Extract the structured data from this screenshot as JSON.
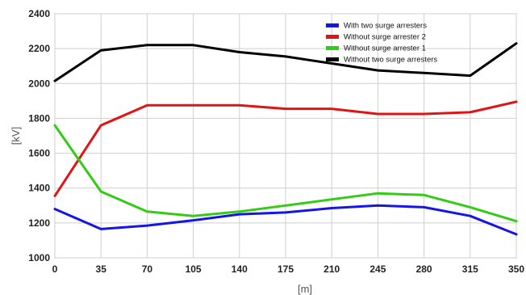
{
  "chart_data": {
    "type": "line",
    "title": "",
    "xlabel": "[m]",
    "ylabel": "[kV]",
    "x": [
      0,
      35,
      70,
      105,
      140,
      175,
      210,
      245,
      280,
      315,
      350
    ],
    "xticks": [
      "0",
      "35",
      "70",
      "105",
      "140",
      "175",
      "210",
      "245",
      "280",
      "315",
      "350"
    ],
    "yticks": [
      "1000",
      "1200",
      "1400",
      "1600",
      "1800",
      "2000",
      "2200",
      "2400"
    ],
    "xlim": [
      0,
      350
    ],
    "ylim": [
      1000,
      2400
    ],
    "grid": true,
    "legend_position": "top-right",
    "series": [
      {
        "name": "With two surge arresters",
        "color": "#1515e8",
        "values": [
          1280,
          1165,
          1185,
          1215,
          1250,
          1260,
          1285,
          1300,
          1290,
          1240,
          1135
        ]
      },
      {
        "name": "Without surge arrester 2",
        "color": "#e01414",
        "values": [
          1355,
          1760,
          1875,
          1875,
          1875,
          1855,
          1855,
          1825,
          1825,
          1835,
          1895
        ]
      },
      {
        "name": "Without surge arrester 1",
        "color": "#33cc14",
        "values": [
          1760,
          1380,
          1265,
          1240,
          1265,
          1300,
          1335,
          1370,
          1360,
          1290,
          1210
        ]
      },
      {
        "name": "Without two surge arresters",
        "color": "#000000",
        "values": [
          2015,
          2190,
          2220,
          2220,
          2180,
          2155,
          2115,
          2075,
          2060,
          2045,
          2230
        ]
      }
    ]
  }
}
